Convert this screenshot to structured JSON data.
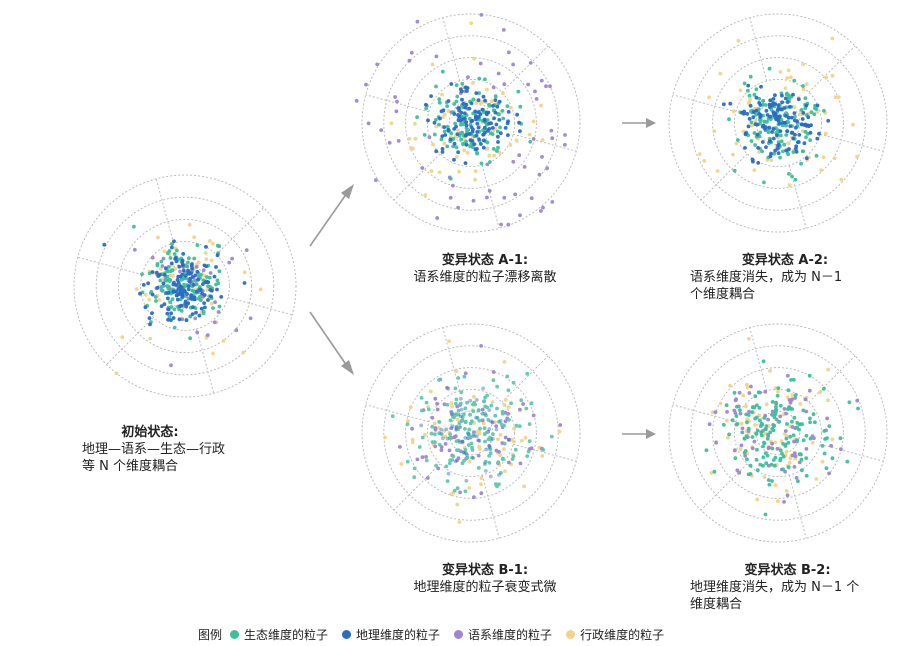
{
  "legend": {
    "title": "图例",
    "items": [
      {
        "label": "生态维度的粒子",
        "color": "#3dbf9b"
      },
      {
        "label": "地理维度的粒子",
        "color": "#2a6bc4"
      },
      {
        "label": "语系维度的粒子",
        "color": "#9f86cf"
      },
      {
        "label": "行政维度的粒子",
        "color": "#f0d48a"
      }
    ]
  },
  "states": {
    "initial": {
      "title": "初始状态:",
      "sub": "地理—语系—生态—行政\n等 N 个维度耦合"
    },
    "a1": {
      "title": "变异状态 A-1:",
      "sub": "语系维度的粒子漂移离散"
    },
    "a2": {
      "title": "变异状态 A-2:",
      "sub": "语系维度消失，成为 N－1\n个维度耦合"
    },
    "b1": {
      "title": "变异状态 B-1:",
      "sub": "地理维度的粒子衰变式微"
    },
    "b2": {
      "title": "变异状态 B-2:",
      "sub": "地理维度消失，成为 N－1 个\n维度耦合"
    }
  },
  "colors": {
    "ring": "#b5b5b5",
    "arrow": "#9a9a9a"
  }
}
